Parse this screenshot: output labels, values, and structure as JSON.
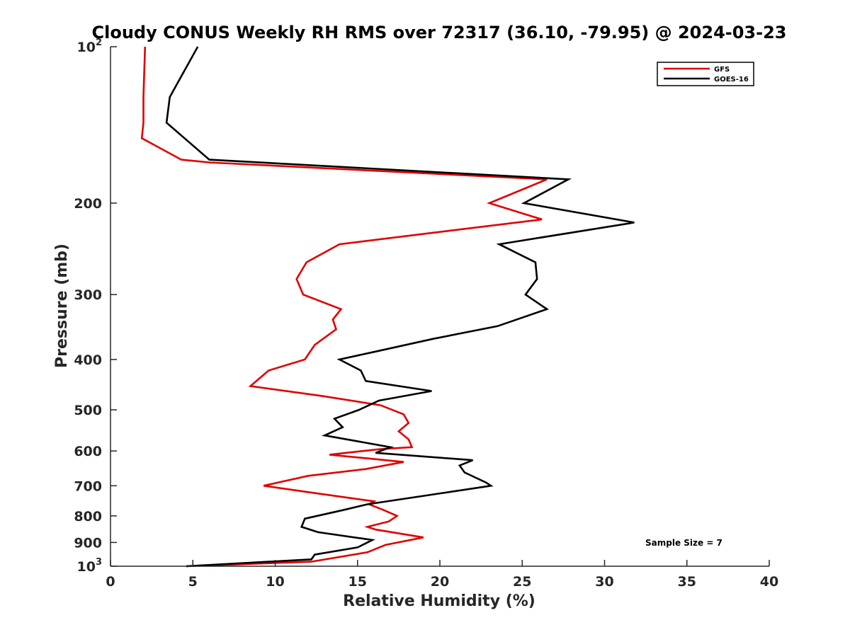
{
  "chart_data": {
    "type": "line",
    "title": "Cloudy CONUS Weekly RH RMS over 72317 (36.10, -79.95) @ 2024-03-23",
    "xlabel": "Relative Humidity (%)",
    "ylabel": "Pressure (mb)",
    "xlim": [
      0,
      40
    ],
    "ylim": [
      100,
      1000
    ],
    "yscale": "log",
    "y_reversed": true,
    "x_ticks": [
      "0",
      "5",
      "10",
      "15",
      "20",
      "25",
      "30",
      "35",
      "40"
    ],
    "y_ticks": [
      {
        "value": 100,
        "label": "10",
        "exp": "2"
      },
      {
        "value": 200,
        "label": "200"
      },
      {
        "value": 300,
        "label": "300"
      },
      {
        "value": 400,
        "label": "400"
      },
      {
        "value": 500,
        "label": "500"
      },
      {
        "value": 600,
        "label": "600"
      },
      {
        "value": 700,
        "label": "700"
      },
      {
        "value": 800,
        "label": "800"
      },
      {
        "value": 900,
        "label": "900"
      },
      {
        "value": 1000,
        "label": "10",
        "exp": "3"
      }
    ],
    "legend_position": "top-right",
    "grid": false,
    "annotation": "Sample Size = 7",
    "series": [
      {
        "name": "GFS",
        "color": "#e00000",
        "points": [
          [
            2.1,
            100
          ],
          [
            2.0,
            125
          ],
          [
            2.0,
            140
          ],
          [
            1.9,
            150
          ],
          [
            4.3,
            165
          ],
          [
            6.0,
            167
          ],
          [
            26.5,
            180
          ],
          [
            23.0,
            200
          ],
          [
            26.2,
            215
          ],
          [
            13.9,
            240
          ],
          [
            11.9,
            260
          ],
          [
            11.3,
            280
          ],
          [
            11.7,
            300
          ],
          [
            14.0,
            320
          ],
          [
            13.5,
            335
          ],
          [
            13.7,
            350
          ],
          [
            12.4,
            375
          ],
          [
            11.8,
            400
          ],
          [
            9.6,
            420
          ],
          [
            8.5,
            450
          ],
          [
            12.8,
            470
          ],
          [
            16.4,
            490
          ],
          [
            17.8,
            510
          ],
          [
            18.1,
            530
          ],
          [
            17.5,
            550
          ],
          [
            18.1,
            570
          ],
          [
            18.3,
            590
          ],
          [
            16.4,
            595
          ],
          [
            13.3,
            610
          ],
          [
            17.8,
            630
          ],
          [
            15.5,
            650
          ],
          [
            12.0,
            670
          ],
          [
            9.3,
            700
          ],
          [
            12.0,
            720
          ],
          [
            16.0,
            750
          ],
          [
            15.7,
            760
          ],
          [
            16.6,
            780
          ],
          [
            17.4,
            800
          ],
          [
            16.9,
            820
          ],
          [
            15.6,
            840
          ],
          [
            16.1,
            850
          ],
          [
            19.0,
            880
          ],
          [
            16.7,
            910
          ],
          [
            15.6,
            940
          ],
          [
            12.2,
            980
          ],
          [
            4.6,
            1000
          ]
        ]
      },
      {
        "name": "GOES-16",
        "color": "#000000",
        "points": [
          [
            5.3,
            100
          ],
          [
            3.6,
            125
          ],
          [
            3.4,
            140
          ],
          [
            6.0,
            165
          ],
          [
            27.8,
            180
          ],
          [
            25.1,
            200
          ],
          [
            31.8,
            218
          ],
          [
            23.6,
            240
          ],
          [
            25.8,
            260
          ],
          [
            25.9,
            280
          ],
          [
            25.2,
            300
          ],
          [
            26.5,
            320
          ],
          [
            23.5,
            345
          ],
          [
            19.6,
            365
          ],
          [
            16.3,
            385
          ],
          [
            13.9,
            400
          ],
          [
            15.2,
            420
          ],
          [
            15.5,
            440
          ],
          [
            19.5,
            460
          ],
          [
            16.3,
            480
          ],
          [
            15.1,
            500
          ],
          [
            13.6,
            520
          ],
          [
            14.1,
            540
          ],
          [
            13.0,
            560
          ],
          [
            17.0,
            590
          ],
          [
            16.1,
            605
          ],
          [
            22.0,
            625
          ],
          [
            21.2,
            640
          ],
          [
            21.5,
            660
          ],
          [
            22.8,
            690
          ],
          [
            23.1,
            700
          ],
          [
            19.9,
            725
          ],
          [
            15.6,
            760
          ],
          [
            14.1,
            780
          ],
          [
            11.8,
            810
          ],
          [
            11.6,
            840
          ],
          [
            12.6,
            860
          ],
          [
            15.9,
            890
          ],
          [
            15.0,
            920
          ],
          [
            12.4,
            950
          ],
          [
            12.2,
            970
          ],
          [
            4.6,
            1000
          ]
        ]
      }
    ]
  }
}
